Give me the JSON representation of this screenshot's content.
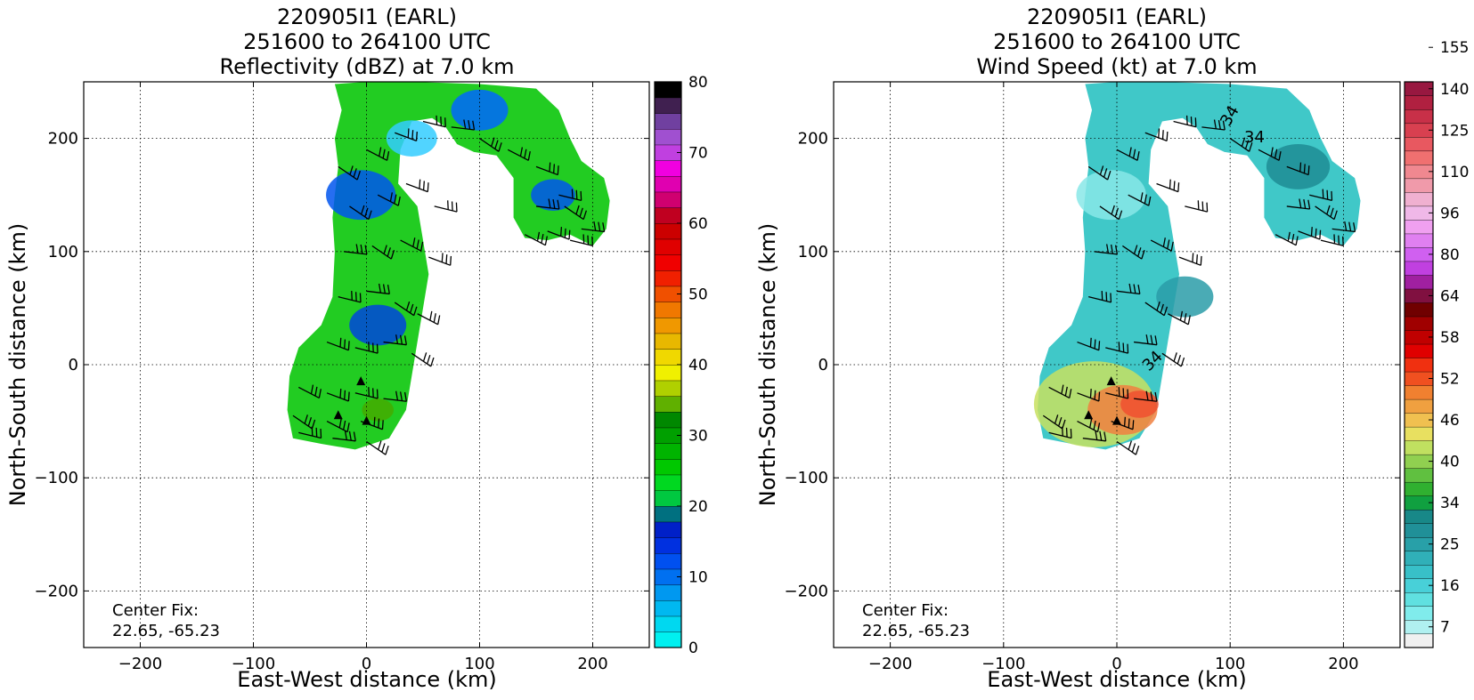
{
  "chart_data": [
    {
      "type": "heatmap",
      "title": [
        "220905I1 (EARL)",
        "251600 to 264100 UTC",
        "Reflectivity (dBZ) at 7.0 km"
      ],
      "xlabel": "East-West distance (km)",
      "ylabel": "North-South distance (km)",
      "xlim": [
        -250,
        250
      ],
      "ylim": [
        -250,
        250
      ],
      "xticks": [
        -200,
        -100,
        0,
        100,
        200
      ],
      "yticks": [
        -200,
        -100,
        0,
        100,
        200
      ],
      "xtick_labels": [
        "−200",
        "−100",
        "0",
        "100",
        "200"
      ],
      "ytick_labels": [
        "−200",
        "−100",
        "0",
        "100",
        "200"
      ],
      "grid": true,
      "annotation": [
        "Center Fix:",
        "22.65, -65.23"
      ],
      "colorbar": {
        "min": 0,
        "max": 80,
        "ticks": [
          0,
          10,
          20,
          30,
          40,
          50,
          60,
          70,
          80
        ],
        "tick_labels": [
          "0",
          "10",
          "20",
          "30",
          "40",
          "50",
          "60",
          "70",
          "80"
        ],
        "colors": [
          "#00f0f0",
          "#00d8f0",
          "#00b8f0",
          "#0098f0",
          "#0070f0",
          "#0050f0",
          "#0030e0",
          "#0020c8",
          "#007080",
          "#00c840",
          "#00d820",
          "#00c800",
          "#00b400",
          "#00a000",
          "#008800",
          "#60b000",
          "#b0d000",
          "#f0f000",
          "#f0d800",
          "#e8b800",
          "#f09800",
          "#f07800",
          "#f05000",
          "#f02000",
          "#f00000",
          "#e00000",
          "#cc0000",
          "#c00020",
          "#d00070",
          "#e000b0",
          "#f000e0",
          "#c040e0",
          "#a050d0",
          "#7040a0",
          "#402050",
          "#000000"
        ]
      },
      "field_color": "#22cc22",
      "barbs": true
    },
    {
      "type": "heatmap",
      "title": [
        "220905I1 (EARL)",
        "251600 to 264100 UTC",
        "Wind Speed (kt) at 7.0 km"
      ],
      "xlabel": "East-West distance (km)",
      "ylabel": "North-South distance (km)",
      "xlim": [
        -250,
        250
      ],
      "ylim": [
        -250,
        250
      ],
      "xticks": [
        -200,
        -100,
        0,
        100,
        200
      ],
      "yticks": [
        -200,
        -100,
        0,
        100,
        200
      ],
      "xtick_labels": [
        "−200",
        "−100",
        "0",
        "100",
        "200"
      ],
      "ytick_labels": [
        "−200",
        "−100",
        "0",
        "100",
        "200"
      ],
      "grid": true,
      "annotation": [
        "Center Fix:",
        "22.65, -65.23"
      ],
      "contour_labels": [
        "34",
        "34",
        "34"
      ],
      "colorbar": {
        "tick_labels": [
          "7",
          "16",
          "25",
          "34",
          "40",
          "46",
          "52",
          "58",
          "64",
          "80",
          "96",
          "110",
          "125",
          "140",
          "155"
        ],
        "colors": [
          "#f0f0f0",
          "#b0f0f0",
          "#80ecec",
          "#60e0e0",
          "#48d0d8",
          "#38c0c8",
          "#30b0b8",
          "#28a0a8",
          "#209098",
          "#188888",
          "#10a040",
          "#30b030",
          "#60c040",
          "#90d050",
          "#c0e060",
          "#e8e060",
          "#f0c050",
          "#f0a040",
          "#f08030",
          "#f05020",
          "#f03010",
          "#e00000",
          "#c00000",
          "#a00000",
          "#700000",
          "#801040",
          "#a020a0",
          "#c040e0",
          "#d060f0",
          "#e080f0",
          "#f0a0f0",
          "#f0b8e8",
          "#f0b0d0",
          "#f09aaa",
          "#f08890",
          "#f07070",
          "#e85860",
          "#d84050",
          "#c83048",
          "#b02040",
          "#981840"
        ]
      },
      "field_color": "#40c8c8",
      "barbs": true
    }
  ]
}
